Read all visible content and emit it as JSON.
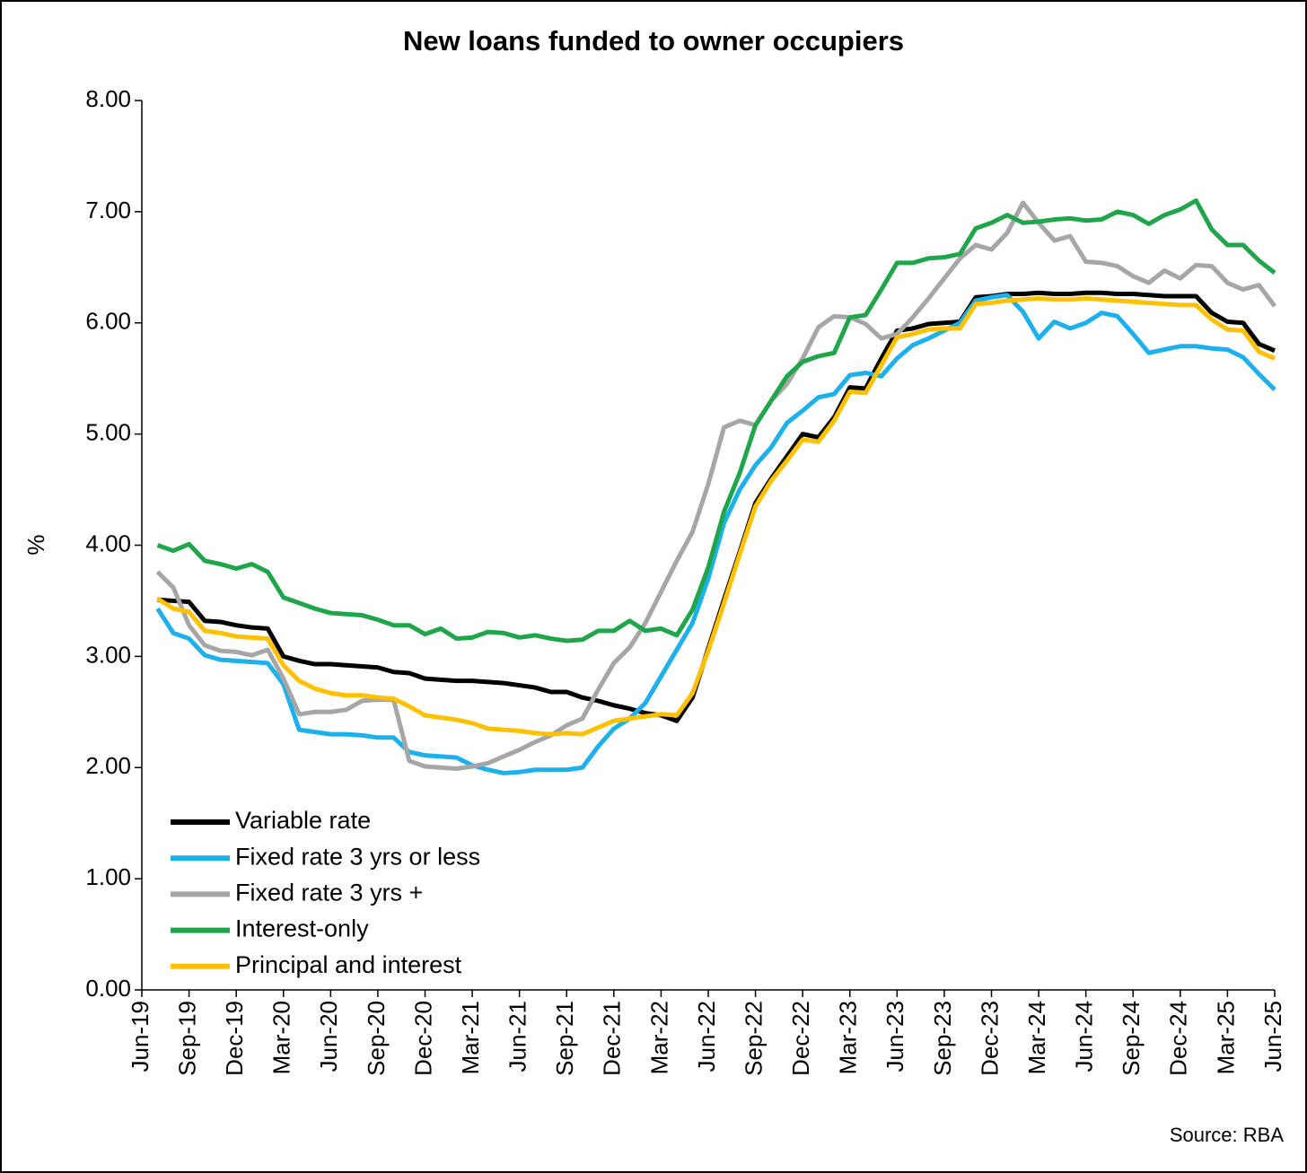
{
  "chart_data": {
    "type": "line",
    "title": "New loans funded to owner occupiers",
    "y_label": "%",
    "source": "Source: RBA",
    "categories": [
      "Jun-19",
      null,
      null,
      "Sep-19",
      null,
      null,
      "Dec-19",
      null,
      null,
      "Mar-20",
      null,
      null,
      "Jun-20",
      null,
      null,
      "Sep-20",
      null,
      null,
      "Dec-20",
      null,
      null,
      "Mar-21",
      null,
      null,
      "Jun-21",
      null,
      null,
      "Sep-21",
      null,
      null,
      "Dec-21",
      null,
      null,
      "Mar-22",
      null,
      null,
      "Jun-22",
      null,
      null,
      "Sep-22",
      null,
      null,
      "Dec-22",
      null,
      null,
      "Mar-23",
      null,
      null,
      "Jun-23",
      null,
      null,
      "Sep-23",
      null,
      null,
      "Dec-23",
      null,
      null,
      "Mar-24",
      null,
      null,
      "Jun-24",
      null,
      null,
      "Sep-24",
      null,
      null,
      "Dec-24",
      null,
      null,
      "Mar-25",
      null,
      null,
      "Jun-25"
    ],
    "ylim": [
      0,
      8
    ],
    "yticks": [
      {
        "value": 0,
        "label": "0.00"
      },
      {
        "value": 1,
        "label": "1.00"
      },
      {
        "value": 2,
        "label": "2.00"
      },
      {
        "value": 3,
        "label": "3.00"
      },
      {
        "value": 4,
        "label": "4.00"
      },
      {
        "value": 5,
        "label": "5.00"
      },
      {
        "value": 6,
        "label": "6.00"
      },
      {
        "value": 7,
        "label": "7.00"
      },
      {
        "value": 8,
        "label": "8.00"
      }
    ],
    "legend_position": "lower left",
    "series": [
      {
        "name": "Variable rate",
        "color": "#000000",
        "values": [
          null,
          3.51,
          3.5,
          3.49,
          3.32,
          3.31,
          3.28,
          3.26,
          3.25,
          3.0,
          2.96,
          2.93,
          2.93,
          2.92,
          2.91,
          2.9,
          2.86,
          2.85,
          2.8,
          2.79,
          2.78,
          2.78,
          2.77,
          2.76,
          2.74,
          2.72,
          2.68,
          2.68,
          2.63,
          2.6,
          2.56,
          2.53,
          2.49,
          2.47,
          2.42,
          2.63,
          3.07,
          3.51,
          3.94,
          4.38,
          4.6,
          4.8,
          5.0,
          4.97,
          5.15,
          5.42,
          5.41,
          5.68,
          5.93,
          5.95,
          5.99,
          6.0,
          6.01,
          6.23,
          6.24,
          6.26,
          6.26,
          6.27,
          6.26,
          6.26,
          6.27,
          6.27,
          6.26,
          6.26,
          6.25,
          6.24,
          6.24,
          6.24,
          6.09,
          6.01,
          6.0,
          5.81,
          5.75
        ]
      },
      {
        "name": "Fixed rate 3 yrs or less",
        "color": "#1cb0ec",
        "values": [
          null,
          3.43,
          3.21,
          3.16,
          3.01,
          2.97,
          2.96,
          2.95,
          2.94,
          2.75,
          2.34,
          2.32,
          2.3,
          2.3,
          2.29,
          2.27,
          2.27,
          2.14,
          2.11,
          2.1,
          2.09,
          2.02,
          1.98,
          1.95,
          1.96,
          1.98,
          1.98,
          1.98,
          2.0,
          2.19,
          2.35,
          2.44,
          2.58,
          2.82,
          3.06,
          3.3,
          3.7,
          4.2,
          4.5,
          4.72,
          4.88,
          5.1,
          5.21,
          5.33,
          5.36,
          5.53,
          5.55,
          5.52,
          5.68,
          5.8,
          5.86,
          5.93,
          6.0,
          6.2,
          6.23,
          6.25,
          6.1,
          5.86,
          6.01,
          5.95,
          6.0,
          6.09,
          6.06,
          5.9,
          5.73,
          5.76,
          5.79,
          5.79,
          5.77,
          5.76,
          5.69,
          5.54,
          5.4
        ]
      },
      {
        "name": "Fixed rate 3 yrs +",
        "color": "#a6a6a6",
        "values": [
          null,
          3.76,
          3.62,
          3.28,
          3.1,
          3.05,
          3.04,
          3.01,
          3.06,
          2.8,
          2.48,
          2.5,
          2.5,
          2.52,
          2.6,
          2.61,
          2.61,
          2.06,
          2.01,
          2.0,
          1.99,
          2.01,
          2.04,
          2.1,
          2.16,
          2.23,
          2.29,
          2.38,
          2.44,
          2.7,
          2.94,
          3.08,
          3.3,
          3.58,
          3.86,
          4.12,
          4.55,
          5.06,
          5.12,
          5.08,
          5.3,
          5.45,
          5.68,
          5.96,
          6.06,
          6.05,
          5.99,
          5.86,
          5.9,
          6.05,
          6.22,
          6.4,
          6.58,
          6.7,
          6.66,
          6.81,
          7.08,
          6.9,
          6.74,
          6.78,
          6.55,
          6.54,
          6.51,
          6.42,
          6.36,
          6.47,
          6.4,
          6.52,
          6.51,
          6.36,
          6.3,
          6.34,
          6.15
        ]
      },
      {
        "name": "Interest-only",
        "color": "#1fa64a",
        "values": [
          null,
          4.0,
          3.95,
          4.01,
          3.86,
          3.83,
          3.79,
          3.83,
          3.76,
          3.53,
          3.48,
          3.43,
          3.39,
          3.38,
          3.37,
          3.33,
          3.28,
          3.28,
          3.2,
          3.25,
          3.16,
          3.17,
          3.22,
          3.21,
          3.17,
          3.19,
          3.16,
          3.14,
          3.15,
          3.23,
          3.23,
          3.32,
          3.23,
          3.25,
          3.19,
          3.42,
          3.8,
          4.3,
          4.65,
          5.08,
          5.3,
          5.52,
          5.65,
          5.7,
          5.73,
          6.05,
          6.07,
          6.3,
          6.54,
          6.54,
          6.58,
          6.59,
          6.62,
          6.85,
          6.9,
          6.97,
          6.9,
          6.91,
          6.93,
          6.94,
          6.92,
          6.93,
          7.0,
          6.97,
          6.89,
          6.97,
          7.02,
          7.1,
          6.84,
          6.7,
          6.7,
          6.56,
          6.45
        ]
      },
      {
        "name": "Principal and interest",
        "color": "#ffc000",
        "values": [
          null,
          3.52,
          3.43,
          3.4,
          3.23,
          3.21,
          3.18,
          3.17,
          3.16,
          2.92,
          2.78,
          2.71,
          2.67,
          2.65,
          2.65,
          2.63,
          2.62,
          2.55,
          2.47,
          2.45,
          2.43,
          2.4,
          2.35,
          2.34,
          2.33,
          2.31,
          2.3,
          2.31,
          2.3,
          2.36,
          2.42,
          2.44,
          2.46,
          2.48,
          2.47,
          2.67,
          3.05,
          3.48,
          3.92,
          4.35,
          4.58,
          4.76,
          4.95,
          4.93,
          5.12,
          5.38,
          5.37,
          5.62,
          5.87,
          5.9,
          5.94,
          5.95,
          5.95,
          6.17,
          6.18,
          6.2,
          6.21,
          6.22,
          6.21,
          6.21,
          6.22,
          6.21,
          6.2,
          6.19,
          6.18,
          6.17,
          6.16,
          6.16,
          6.03,
          5.94,
          5.93,
          5.74,
          5.68
        ]
      }
    ]
  }
}
